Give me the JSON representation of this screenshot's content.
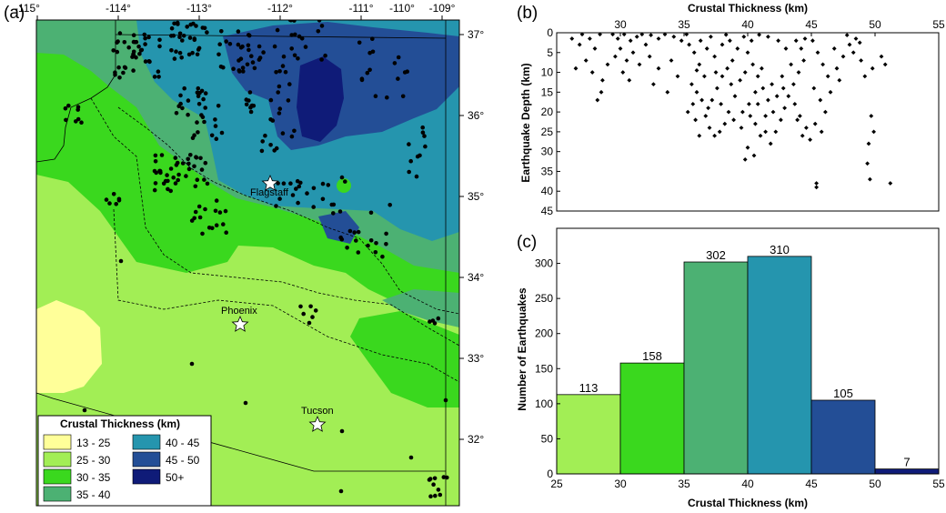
{
  "panel_labels": {
    "a": "(a)",
    "b": "(b)",
    "c": "(c)"
  },
  "colors": {
    "c13_25": "#FFFF99",
    "c25_30": "#A2EE55",
    "c30_35": "#3AD81E",
    "c35_40": "#4CB173",
    "c40_45": "#2595AE",
    "c45_50": "#234E96",
    "c50": "#0F1B78",
    "quake": "#000000"
  },
  "map": {
    "lon_ticks": [
      "-115°",
      "-114°",
      "-113°",
      "-112°",
      "-111°",
      "-110°",
      "-109°"
    ],
    "lat_ticks": [
      "37°",
      "36°",
      "35°",
      "34°",
      "33°",
      "32°"
    ],
    "cities": [
      "Flagstaff",
      "Phoenix",
      "Tucson"
    ],
    "legend": {
      "title": "Crustal Thickness (km)",
      "items": [
        "13 - 25",
        "25 - 30",
        "30 - 35",
        "35 - 40",
        "40 - 45",
        "45 - 50",
        "50+"
      ]
    }
  },
  "chart_data": [
    {
      "panel": "(b)",
      "type": "scatter",
      "xlabel": "Crustal Thickness (km)",
      "ylabel": "Earthquake Depth (km)",
      "xlim": [
        25,
        55
      ],
      "ylim": [
        45,
        0
      ],
      "x_ticks": [
        "30",
        "35",
        "40",
        "45",
        "50",
        "55"
      ],
      "y_ticks": [
        "0",
        "5",
        "10",
        "15",
        "20",
        "25",
        "30",
        "35",
        "40",
        "45"
      ],
      "x_axis_position": "top",
      "points": [
        [
          26.2,
          1.5
        ],
        [
          26.8,
          3
        ],
        [
          27.0,
          0.4
        ],
        [
          27.6,
          1.5
        ],
        [
          28.4,
          0.4
        ],
        [
          28.0,
          4
        ],
        [
          27.3,
          7
        ],
        [
          26.5,
          9
        ],
        [
          27.8,
          10
        ],
        [
          28.5,
          15
        ],
        [
          28.2,
          17
        ],
        [
          29.0,
          8
        ],
        [
          28.6,
          12
        ],
        [
          29.4,
          0.4
        ],
        [
          29.8,
          1.5
        ],
        [
          30.3,
          0.4
        ],
        [
          30.8,
          2
        ],
        [
          31.3,
          1
        ],
        [
          31.7,
          0.4
        ],
        [
          30.0,
          4
        ],
        [
          29.6,
          6
        ],
        [
          30.5,
          7
        ],
        [
          31.0,
          5
        ],
        [
          31.5,
          8
        ],
        [
          30.2,
          10
        ],
        [
          30.7,
          12
        ],
        [
          32.0,
          3
        ],
        [
          32.4,
          0.6
        ],
        [
          33.0,
          1.5
        ],
        [
          33.5,
          0.4
        ],
        [
          34.2,
          1
        ],
        [
          34.8,
          2
        ],
        [
          35.2,
          0.4
        ],
        [
          32.3,
          6
        ],
        [
          33.0,
          9
        ],
        [
          34.0,
          7
        ],
        [
          32.6,
          13
        ],
        [
          33.7,
          15
        ],
        [
          34.5,
          11
        ],
        [
          35.4,
          3
        ],
        [
          35.8,
          5
        ],
        [
          36.2,
          8
        ],
        [
          36.6,
          11
        ],
        [
          35.6,
          13
        ],
        [
          36.0,
          15
        ],
        [
          36.4,
          17
        ],
        [
          36.9,
          19
        ],
        [
          35.3,
          20
        ],
        [
          35.9,
          22
        ],
        [
          36.7,
          21
        ],
        [
          37.0,
          24
        ],
        [
          37.4,
          26
        ],
        [
          37.8,
          25
        ],
        [
          38.2,
          23
        ],
        [
          37.2,
          17
        ],
        [
          37.6,
          14
        ],
        [
          38.0,
          11
        ],
        [
          38.4,
          9
        ],
        [
          38.8,
          7
        ],
        [
          37.4,
          6
        ],
        [
          38.0,
          3
        ],
        [
          38.6,
          2
        ],
        [
          39.2,
          4
        ],
        [
          36.8,
          4
        ],
        [
          37.9,
          18
        ],
        [
          38.5,
          20
        ],
        [
          39.0,
          16
        ],
        [
          39.4,
          12
        ],
        [
          39.8,
          10
        ],
        [
          38.7,
          13
        ],
        [
          36.3,
          2
        ],
        [
          37.1,
          1
        ],
        [
          38.3,
          0.5
        ],
        [
          39.7,
          1
        ],
        [
          36.0,
          9.5
        ],
        [
          37.5,
          10
        ],
        [
          35.7,
          18
        ],
        [
          36.2,
          26
        ],
        [
          38.9,
          22
        ],
        [
          39.5,
          24
        ],
        [
          40.0,
          5
        ],
        [
          40.4,
          8
        ],
        [
          40.8,
          11
        ],
        [
          41.2,
          14
        ],
        [
          41.6,
          17
        ],
        [
          42.0,
          20
        ],
        [
          40.2,
          21
        ],
        [
          40.6,
          23
        ],
        [
          41.0,
          26
        ],
        [
          41.4,
          25
        ],
        [
          40.0,
          29
        ],
        [
          40.5,
          31
        ],
        [
          39.8,
          32
        ],
        [
          41.8,
          28
        ],
        [
          42.2,
          25
        ],
        [
          42.6,
          22
        ],
        [
          42.9,
          19
        ],
        [
          43.2,
          16
        ],
        [
          43.6,
          13
        ],
        [
          44.0,
          10
        ],
        [
          44.4,
          7
        ],
        [
          43.0,
          4
        ],
        [
          42.4,
          2
        ],
        [
          41.6,
          1
        ],
        [
          40.9,
          0.5
        ],
        [
          40.3,
          2
        ],
        [
          43.8,
          2
        ],
        [
          44.5,
          1.5
        ],
        [
          44.2,
          4
        ],
        [
          43.4,
          8
        ],
        [
          42.7,
          11
        ],
        [
          41.9,
          13
        ],
        [
          41.1,
          9
        ],
        [
          40.6,
          15
        ],
        [
          40.1,
          18
        ],
        [
          39.6,
          20
        ],
        [
          42.3,
          16
        ],
        [
          43.7,
          18
        ],
        [
          44.1,
          21
        ],
        [
          44.6,
          24
        ],
        [
          44.9,
          27
        ],
        [
          44.3,
          26
        ],
        [
          43.9,
          22
        ],
        [
          42.8,
          14
        ],
        [
          41.4,
          21
        ],
        [
          40.8,
          18
        ],
        [
          45.1,
          2
        ],
        [
          45.5,
          5
        ],
        [
          45.9,
          8
        ],
        [
          46.3,
          11
        ],
        [
          45.2,
          14
        ],
        [
          45.7,
          17
        ],
        [
          46.1,
          20
        ],
        [
          45.3,
          23
        ],
        [
          45.8,
          25
        ],
        [
          46.5,
          15
        ],
        [
          47.0,
          9
        ],
        [
          47.5,
          6
        ],
        [
          48.0,
          3
        ],
        [
          48.5,
          1.5
        ],
        [
          47.2,
          12
        ],
        [
          46.8,
          4
        ],
        [
          45.4,
          38
        ],
        [
          45.4,
          39
        ],
        [
          49.4,
          33
        ],
        [
          49.6,
          37
        ],
        [
          49.7,
          21
        ],
        [
          49.9,
          25
        ],
        [
          49.5,
          28
        ],
        [
          51.2,
          38
        ],
        [
          50.8,
          8
        ],
        [
          50.5,
          6
        ],
        [
          49.8,
          9
        ],
        [
          48.8,
          2.5
        ],
        [
          48.3,
          5
        ],
        [
          49.2,
          11
        ],
        [
          47.8,
          0.6
        ],
        [
          48.9,
          7
        ]
      ]
    },
    {
      "panel": "(c)",
      "type": "bar",
      "xlabel": "Crustal Thickness (km)",
      "ylabel": "Number of Earthquakes",
      "xlim": [
        25,
        55
      ],
      "ylim": [
        0,
        350
      ],
      "x_ticks": [
        "25",
        "30",
        "35",
        "40",
        "45",
        "50",
        "55"
      ],
      "y_ticks": [
        "0",
        "50",
        "100",
        "150",
        "200",
        "250",
        "300"
      ],
      "bins": [
        [
          25,
          30
        ],
        [
          30,
          35
        ],
        [
          35,
          40
        ],
        [
          40,
          45
        ],
        [
          45,
          50
        ],
        [
          50,
          55
        ]
      ],
      "values": [
        113,
        158,
        302,
        310,
        105,
        7
      ],
      "value_labels": [
        "113",
        "158",
        "302",
        "310",
        "105",
        "7"
      ]
    }
  ]
}
